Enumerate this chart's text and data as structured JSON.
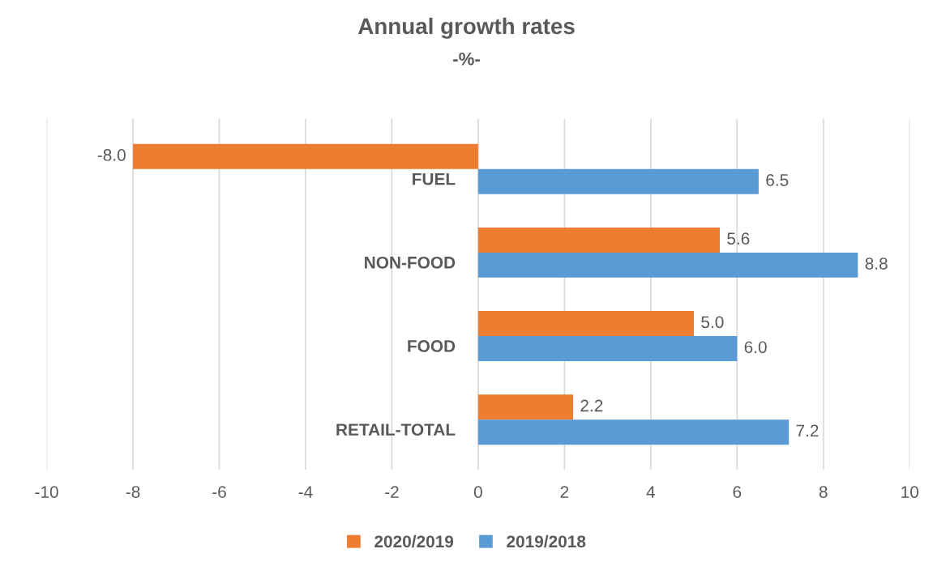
{
  "chart_data": {
    "type": "bar",
    "orientation": "horizontal",
    "title": "Annual growth rates",
    "subtitle": "-%-",
    "categories": [
      "FUEL",
      "NON-FOOD",
      "FOOD",
      "RETAIL-TOTAL"
    ],
    "series": [
      {
        "name": "2020/2019",
        "color": "#ed7d31",
        "values": [
          -8.0,
          5.6,
          5.0,
          2.2
        ],
        "value_labels": [
          "-8.0",
          "5.6",
          "5.0",
          "2.2"
        ]
      },
      {
        "name": "2019/2018",
        "color": "#5b9bd5",
        "values": [
          6.5,
          8.8,
          6.0,
          7.2
        ],
        "value_labels": [
          "6.5",
          "8.8",
          "6.0",
          "7.2"
        ]
      }
    ],
    "xlim": [
      -10,
      10
    ],
    "xticks": [
      -10,
      -8,
      -6,
      -4,
      -2,
      0,
      2,
      4,
      6,
      8,
      10
    ],
    "grid": "x",
    "legend": "bottom"
  }
}
